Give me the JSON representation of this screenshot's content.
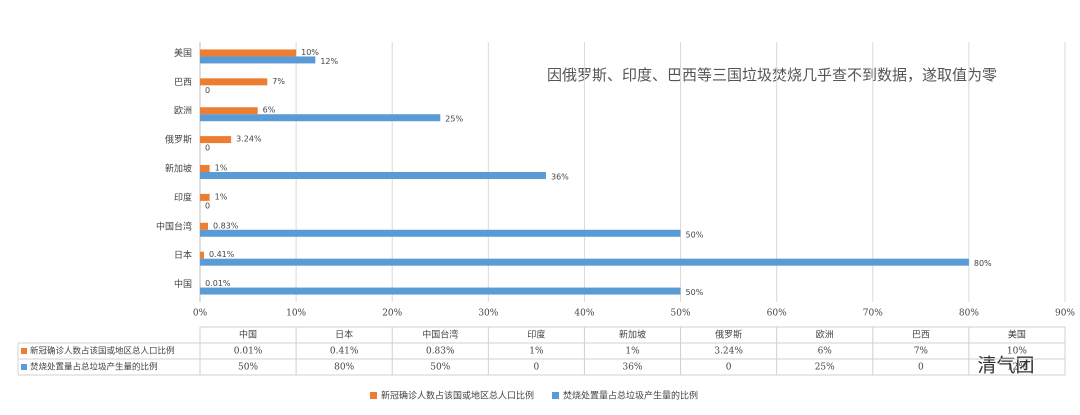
{
  "chart_data": {
    "type": "bar",
    "orientation": "horizontal",
    "annotation": "因俄罗斯、印度、巴西等三国垃圾焚烧几乎查不到数据，遂取值为零",
    "categories": [
      "中国",
      "日本",
      "中国台湾",
      "印度",
      "新加坡",
      "俄罗斯",
      "欧洲",
      "巴西",
      "美国"
    ],
    "series": [
      {
        "name": "新冠确诊人数占该国或地区总人口比例",
        "color": "#ed7d31",
        "values": [
          0.01,
          0.41,
          0.83,
          1,
          1,
          3.24,
          6,
          7,
          10
        ],
        "value_labels": [
          "0.01%",
          "0.41%",
          "0.83%",
          "1%",
          "1%",
          "3.24%",
          "6%",
          "7%",
          "10%"
        ]
      },
      {
        "name": "焚烧处置量占总垃圾产生量的比例",
        "color": "#5b9bd5",
        "values": [
          50,
          80,
          50,
          0,
          36,
          0,
          25,
          0,
          12
        ],
        "value_labels": [
          "50%",
          "80%",
          "50%",
          "0",
          "36%",
          "0",
          "25%",
          "0",
          "12%"
        ]
      }
    ],
    "xlim": [
      0,
      90
    ],
    "xticks": [
      {
        "value": 0,
        "label": "0%"
      },
      {
        "value": 10,
        "label": "10%"
      },
      {
        "value": 20,
        "label": "20%"
      },
      {
        "value": 30,
        "label": "30%"
      },
      {
        "value": 40,
        "label": "40%"
      },
      {
        "value": 50,
        "label": "50%"
      },
      {
        "value": 60,
        "label": "60%"
      },
      {
        "value": 70,
        "label": "70%"
      },
      {
        "value": 80,
        "label": "80%"
      },
      {
        "value": 90,
        "label": "90%"
      }
    ],
    "grid": true,
    "data_table": true,
    "legend": "bottom"
  },
  "watermark": "清气团"
}
